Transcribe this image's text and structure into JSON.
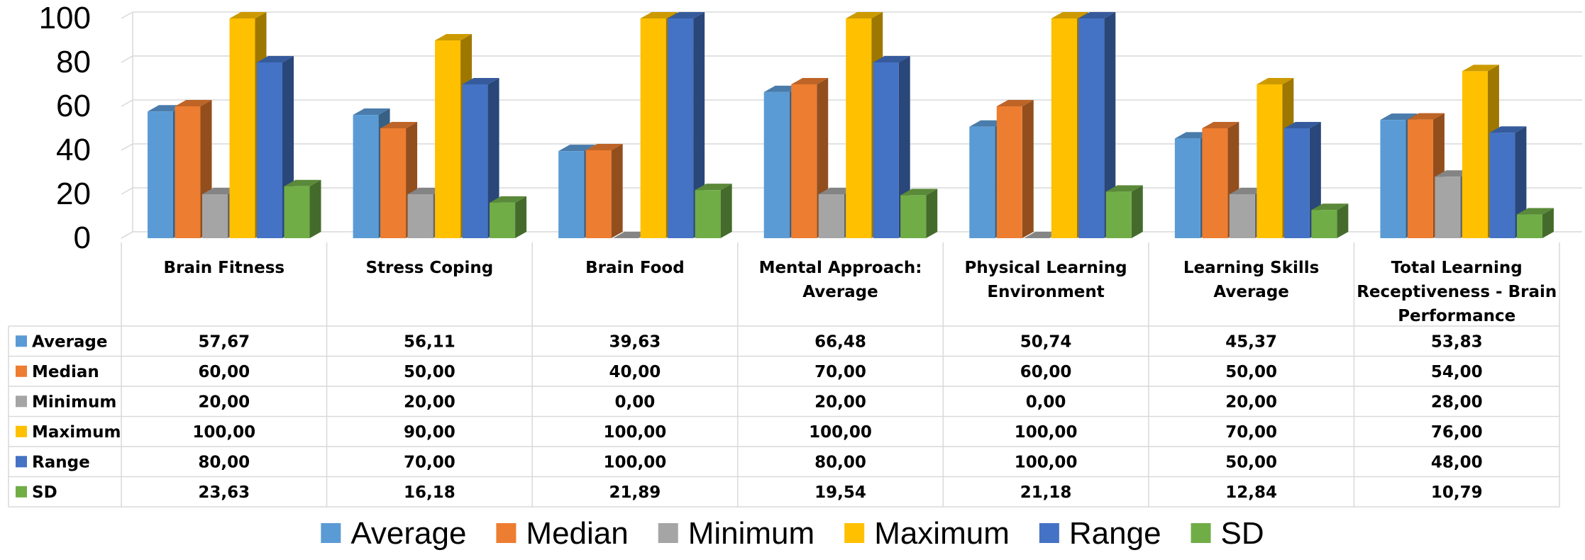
{
  "chart_data": {
    "type": "bar",
    "categories": [
      [
        "Brain Fitness"
      ],
      [
        "Stress Coping"
      ],
      [
        "Brain Food"
      ],
      [
        "Mental Approach:",
        "Average"
      ],
      [
        "Physical Learning",
        "Environment"
      ],
      [
        "Learning Skills",
        "Average"
      ],
      [
        "Total Learning",
        "Receptiveness - Brain",
        "Performance"
      ]
    ],
    "series": [
      {
        "name": "Average",
        "color": "#5B9BD5",
        "values": [
          57.67,
          56.11,
          39.63,
          66.48,
          50.74,
          45.37,
          53.83
        ],
        "labels": [
          "57,67",
          "56,11",
          "39,63",
          "66,48",
          "50,74",
          "45,37",
          "53,83"
        ]
      },
      {
        "name": "Median",
        "color": "#ED7D31",
        "values": [
          60,
          50,
          40,
          70,
          60,
          50,
          54
        ],
        "labels": [
          "60,00",
          "50,00",
          "40,00",
          "70,00",
          "60,00",
          "50,00",
          "54,00"
        ]
      },
      {
        "name": "Minimum",
        "color": "#A5A5A5",
        "values": [
          20,
          20,
          0,
          20,
          0,
          20,
          28
        ],
        "labels": [
          "20,00",
          "20,00",
          "0,00",
          "20,00",
          "0,00",
          "20,00",
          "28,00"
        ]
      },
      {
        "name": "Maximum",
        "color": "#FFC000",
        "values": [
          100,
          90,
          100,
          100,
          100,
          70,
          76
        ],
        "labels": [
          "100,00",
          "90,00",
          "100,00",
          "100,00",
          "100,00",
          "70,00",
          "76,00"
        ]
      },
      {
        "name": "Range",
        "color": "#4472C4",
        "values": [
          80,
          70,
          100,
          80,
          100,
          50,
          48
        ],
        "labels": [
          "80,00",
          "70,00",
          "100,00",
          "80,00",
          "100,00",
          "50,00",
          "48,00"
        ]
      },
      {
        "name": "SD",
        "color": "#70AD47",
        "values": [
          23.63,
          16.18,
          21.89,
          19.54,
          21.18,
          12.84,
          10.79
        ],
        "labels": [
          "23,63",
          "16,18",
          "21,89",
          "19,54",
          "21,18",
          "12,84",
          "10,79"
        ]
      }
    ],
    "yticks": [
      "0",
      "20",
      "40",
      "60",
      "80",
      "100"
    ],
    "ylim": [
      0,
      100
    ],
    "grid": true,
    "legend_position": "bottom",
    "data_table": true,
    "style": "3d-clustered-bar"
  }
}
